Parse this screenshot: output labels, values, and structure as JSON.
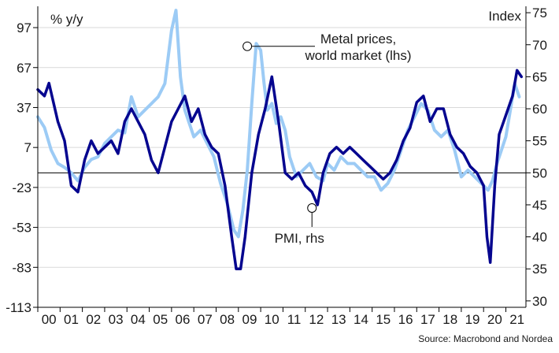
{
  "chart_data": {
    "type": "line",
    "left_unit": "% y/y",
    "right_unit": "Index",
    "source": "Source: Macrobond and Nordea",
    "x_tick_labels": [
      "00",
      "01",
      "02",
      "03",
      "04",
      "05",
      "06",
      "07",
      "08",
      "09",
      "10",
      "11",
      "12",
      "13",
      "14",
      "15",
      "16",
      "17",
      "18",
      "19",
      "20",
      "21"
    ],
    "x_range": [
      2000,
      2021.9
    ],
    "y_left": {
      "ticks": [
        97,
        67,
        37,
        7,
        -23,
        -53,
        -83,
        -113
      ],
      "ylim": [
        -113,
        113
      ]
    },
    "y_right": {
      "ticks": [
        75,
        70,
        65,
        60,
        55,
        50,
        45,
        40,
        35,
        30
      ],
      "ylim": [
        29,
        76
      ]
    },
    "reference_line": {
      "axis": "right",
      "value": 50
    },
    "grid": true,
    "colors": {
      "metal": "#9ccbf5",
      "pmi": "#05058f",
      "grid": "#d9d9d9",
      "axis": "#000000"
    },
    "annotations": [
      {
        "series": "metal",
        "lines": [
          "Metal prices,",
          "world market (lhs)"
        ],
        "x": 2009.4,
        "y": 83
      },
      {
        "series": "pmi",
        "lines": [
          "PMI, rhs"
        ],
        "x": 2012.3,
        "y": 44.5
      }
    ],
    "series": [
      {
        "key": "metal",
        "axis": "left",
        "x": [
          2000.0,
          2000.3,
          2000.6,
          2000.9,
          2001.2,
          2001.5,
          2001.8,
          2002.1,
          2002.4,
          2002.7,
          2003.0,
          2003.3,
          2003.6,
          2003.9,
          2004.2,
          2004.5,
          2004.8,
          2005.1,
          2005.4,
          2005.7,
          2006.0,
          2006.2,
          2006.4,
          2006.6,
          2006.8,
          2007.0,
          2007.3,
          2007.6,
          2007.9,
          2008.2,
          2008.5,
          2008.8,
          2009.0,
          2009.2,
          2009.4,
          2009.6,
          2009.8,
          2010.0,
          2010.15,
          2010.3,
          2010.5,
          2010.7,
          2010.9,
          2011.1,
          2011.3,
          2011.6,
          2011.9,
          2012.2,
          2012.5,
          2012.8,
          2013.0,
          2013.3,
          2013.6,
          2013.9,
          2014.2,
          2014.5,
          2014.8,
          2015.1,
          2015.4,
          2015.7,
          2016.0,
          2016.3,
          2016.6,
          2016.9,
          2017.2,
          2017.5,
          2017.8,
          2018.1,
          2018.4,
          2018.7,
          2019.0,
          2019.3,
          2019.6,
          2019.9,
          2020.2,
          2020.4,
          2020.6,
          2020.8,
          2021.0,
          2021.2,
          2021.4,
          2021.6
        ],
        "values": [
          30,
          22,
          5,
          -5,
          -8,
          -12,
          -18,
          -8,
          -2,
          0,
          10,
          15,
          20,
          18,
          45,
          30,
          35,
          40,
          45,
          55,
          95,
          110,
          60,
          35,
          25,
          15,
          20,
          10,
          0,
          -20,
          -35,
          -55,
          -60,
          -40,
          -10,
          40,
          85,
          80,
          55,
          35,
          40,
          25,
          30,
          20,
          0,
          -15,
          -10,
          -5,
          -15,
          -18,
          -5,
          -10,
          0,
          -5,
          -5,
          -10,
          -15,
          -15,
          -25,
          -20,
          -10,
          5,
          20,
          30,
          40,
          35,
          20,
          15,
          20,
          5,
          -15,
          -10,
          -15,
          -20,
          -25,
          -18,
          -5,
          5,
          15,
          35,
          55,
          45
        ]
      },
      {
        "key": "pmi",
        "axis": "right",
        "x": [
          2000.0,
          2000.3,
          2000.5,
          2000.9,
          2001.2,
          2001.5,
          2001.8,
          2002.1,
          2002.4,
          2002.7,
          2003.0,
          2003.3,
          2003.6,
          2003.9,
          2004.2,
          2004.5,
          2004.8,
          2005.1,
          2005.4,
          2005.7,
          2006.0,
          2006.3,
          2006.6,
          2006.9,
          2007.2,
          2007.5,
          2007.8,
          2008.1,
          2008.4,
          2008.7,
          2008.9,
          2009.1,
          2009.3,
          2009.6,
          2009.9,
          2010.2,
          2010.5,
          2010.8,
          2011.1,
          2011.4,
          2011.7,
          2012.0,
          2012.3,
          2012.55,
          2012.8,
          2013.1,
          2013.4,
          2013.7,
          2014.0,
          2014.3,
          2014.6,
          2014.9,
          2015.2,
          2015.5,
          2015.8,
          2016.1,
          2016.4,
          2016.7,
          2017.0,
          2017.3,
          2017.6,
          2017.9,
          2018.2,
          2018.5,
          2018.8,
          2019.1,
          2019.4,
          2019.7,
          2020.0,
          2020.15,
          2020.3,
          2020.5,
          2020.7,
          2020.9,
          2021.1,
          2021.3,
          2021.5,
          2021.7
        ],
        "values": [
          63,
          62,
          64,
          58,
          55,
          48,
          47,
          52,
          55,
          53,
          54,
          55,
          53,
          58,
          60,
          58,
          56,
          52,
          50,
          54,
          58,
          60,
          62,
          58,
          60,
          56,
          54,
          53,
          48,
          40,
          35,
          35,
          40,
          50,
          56,
          60,
          65,
          58,
          50,
          49,
          50,
          48,
          47,
          45,
          50,
          53,
          54,
          53,
          54,
          53,
          52,
          51,
          50,
          49,
          50,
          52,
          55,
          57,
          61,
          62,
          58,
          60,
          60,
          56,
          54,
          53,
          51,
          50,
          48,
          40,
          36,
          48,
          56,
          58,
          60,
          62,
          66,
          65
        ]
      }
    ]
  }
}
